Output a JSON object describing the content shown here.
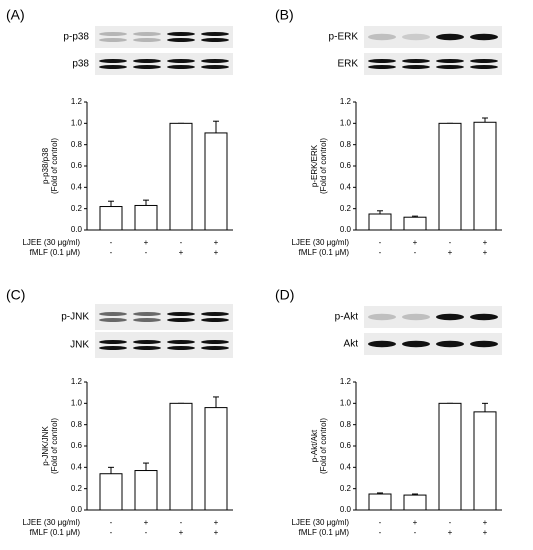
{
  "chart_data": [
    {
      "type": "bar",
      "panel_label": "(A)",
      "blots": [
        "p-p38",
        "p38"
      ],
      "y_label": [
        "p-p38/p38",
        "(Fold of control)"
      ],
      "categories": [
        null,
        null,
        null,
        null
      ],
      "values": [
        0.22,
        0.23,
        1.0,
        0.91
      ],
      "errors": [
        0.05,
        0.05,
        0,
        0.11
      ],
      "color": "#ffffff",
      "ylim": [
        0,
        1.2
      ],
      "yticks": [
        {
          "value": 0,
          "label": "0.0"
        },
        0.2,
        0.4,
        0.6,
        0.8,
        {
          "value": 1,
          "label": "1.0"
        },
        1.2
      ],
      "conditions": [
        {
          "name": "LJEE (30 μg/ml)",
          "marks": [
            "-",
            "+",
            "-",
            "+"
          ]
        },
        {
          "name": "fMLF (0.1 μM)",
          "marks": [
            "-",
            "-",
            "+",
            "+"
          ]
        }
      ]
    },
    {
      "type": "bar",
      "panel_label": "(B)",
      "blots": [
        "p-ERK",
        "ERK"
      ],
      "y_label": [
        "p-ERK/ERK",
        "(Fold of control)"
      ],
      "categories": [
        null,
        null,
        null,
        null
      ],
      "values": [
        0.15,
        0.12,
        1.0,
        1.01
      ],
      "errors": [
        0.03,
        0.01,
        0,
        0.04
      ],
      "color": "#ffffff",
      "ylim": [
        0,
        1.2
      ],
      "yticks": [
        {
          "value": 0,
          "label": "0.0"
        },
        0.2,
        0.4,
        0.6,
        0.8,
        {
          "value": 1,
          "label": "1.0"
        },
        1.2
      ],
      "conditions": [
        {
          "name": "LJEE (30 μg/ml)",
          "marks": [
            "-",
            "+",
            "-",
            "+"
          ]
        },
        {
          "name": "fMLF (0.1 μM)",
          "marks": [
            "-",
            "-",
            "+",
            "+"
          ]
        }
      ]
    },
    {
      "type": "bar",
      "panel_label": "(C)",
      "blots": [
        "p-JNK",
        "JNK"
      ],
      "y_label": [
        "p-JNK/JNK",
        "(Fold of control)"
      ],
      "categories": [
        null,
        null,
        null,
        null
      ],
      "values": [
        0.34,
        0.37,
        1.0,
        0.96
      ],
      "errors": [
        0.06,
        0.07,
        0,
        0.1
      ],
      "color": "#ffffff",
      "ylim": [
        0,
        1.2
      ],
      "yticks": [
        {
          "value": 0,
          "label": "0.0"
        },
        0.2,
        0.4,
        0.6,
        0.8,
        {
          "value": 1,
          "label": "1.0"
        },
        1.2
      ],
      "conditions": [
        {
          "name": "LJEE (30 μg/ml)",
          "marks": [
            "-",
            "+",
            "-",
            "+"
          ]
        },
        {
          "name": "fMLF (0.1 μM)",
          "marks": [
            "-",
            "-",
            "+",
            "+"
          ]
        }
      ]
    },
    {
      "type": "bar",
      "panel_label": "(D)",
      "blots": [
        "p-Akt",
        "Akt"
      ],
      "y_label": [
        "p-Akt/Akt",
        "(Fold of control)"
      ],
      "categories": [
        null,
        null,
        null,
        null
      ],
      "values": [
        0.15,
        0.14,
        1.0,
        0.92
      ],
      "errors": [
        0.01,
        0.01,
        0,
        0.08
      ],
      "color": "#ffffff",
      "ylim": [
        0,
        1.2
      ],
      "yticks": [
        {
          "value": 0,
          "label": "0.0"
        },
        0.2,
        0.4,
        0.6,
        0.8,
        {
          "value": 1,
          "label": "1.0"
        },
        1.2
      ],
      "conditions": [
        {
          "name": "LJEE (30 μg/ml)",
          "marks": [
            "-",
            "+",
            "-",
            "+"
          ]
        },
        {
          "name": "fMLF (0.1 μM)",
          "marks": [
            "-",
            "-",
            "+",
            "+"
          ]
        }
      ]
    }
  ]
}
